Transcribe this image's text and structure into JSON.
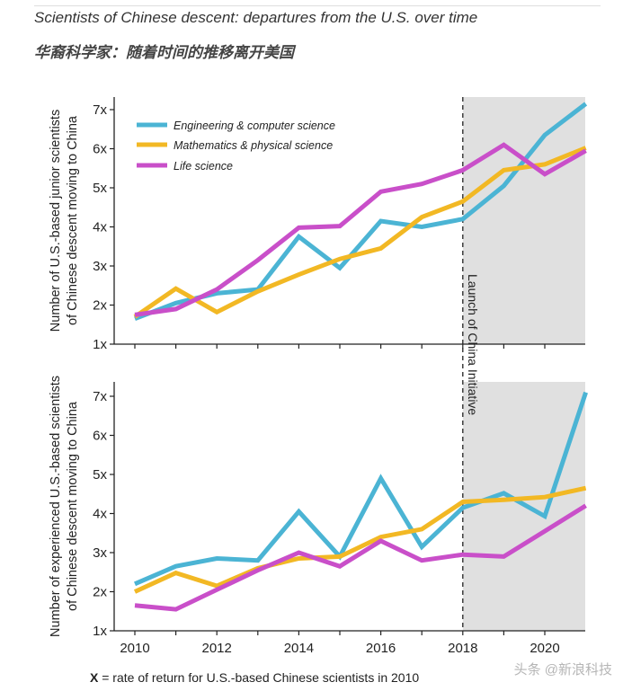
{
  "header": {
    "title": "Scientists of Chinese descent: departures from the U.S. over time",
    "subtitle": "华裔科学家：随着时间的推移离开美国"
  },
  "footnote": {
    "symbol": "X",
    "text": " = rate of return for U.S.-based Chinese scientists in 2010"
  },
  "watermark": "头条 @新浪科技",
  "annotation": "Launch of China Initiative",
  "colors": {
    "engineering": "#4BB4D4",
    "math": "#F2B824",
    "life": "#C94FC9",
    "shade": "#E0E0E0"
  },
  "chart_data": [
    {
      "type": "line",
      "ylabel": "Number of U.S.-based junior scientists of Chinese descent moving to China",
      "ylabel_lines": [
        "Number of U.S.-based junior scientists",
        "of Chinese descent moving to China"
      ],
      "ylim": [
        1,
        7.2
      ],
      "yticks": [
        "1x",
        "2x",
        "3x",
        "4x",
        "5x",
        "6x",
        "7x"
      ],
      "x": [
        2010,
        2011,
        2012,
        2013,
        2014,
        2015,
        2016,
        2017,
        2018,
        2019,
        2020,
        2021
      ],
      "series": [
        {
          "name": "Engineering & computer science",
          "values": [
            1.65,
            2.05,
            2.3,
            2.4,
            3.75,
            2.95,
            4.15,
            4.0,
            4.2,
            5.05,
            6.35,
            7.15
          ]
        },
        {
          "name": "Mathematics & physical science",
          "values": [
            1.7,
            2.42,
            1.82,
            2.35,
            2.78,
            3.18,
            3.45,
            4.25,
            4.65,
            5.45,
            5.6,
            6.02
          ]
        },
        {
          "name": "Life science",
          "values": [
            1.75,
            1.9,
            2.4,
            3.15,
            3.98,
            4.02,
            4.9,
            5.1,
            5.45,
            6.1,
            5.35,
            5.95
          ]
        }
      ],
      "legend": "top-left"
    },
    {
      "type": "line",
      "ylabel": "Number of experienced U.S.-based scientists of Chinese descent moving to China",
      "ylabel_lines": [
        "Number of experienced U.S.-based scientists",
        "of Chinese descent moving to China"
      ],
      "ylim": [
        1,
        7.2
      ],
      "yticks": [
        "1x",
        "2x",
        "3x",
        "4x",
        "5x",
        "6x",
        "7x"
      ],
      "x": [
        2010,
        2011,
        2012,
        2013,
        2014,
        2015,
        2016,
        2017,
        2018,
        2019,
        2020,
        2021
      ],
      "xticks": [
        "2010",
        "2012",
        "2014",
        "2016",
        "2018",
        "2020"
      ],
      "series": [
        {
          "name": "Engineering & computer science",
          "values": [
            2.2,
            2.65,
            2.85,
            2.8,
            4.05,
            2.9,
            4.9,
            3.15,
            4.15,
            4.52,
            3.93,
            7.1
          ]
        },
        {
          "name": "Mathematics & physical science",
          "values": [
            2.0,
            2.48,
            2.15,
            2.6,
            2.85,
            2.9,
            3.4,
            3.6,
            4.3,
            4.35,
            4.42,
            4.65
          ]
        },
        {
          "name": "Life science",
          "values": [
            1.65,
            1.55,
            2.05,
            2.55,
            3.0,
            2.65,
            3.3,
            2.8,
            2.95,
            2.9,
            3.55,
            4.2
          ]
        }
      ]
    }
  ],
  "shade_start": 2018
}
